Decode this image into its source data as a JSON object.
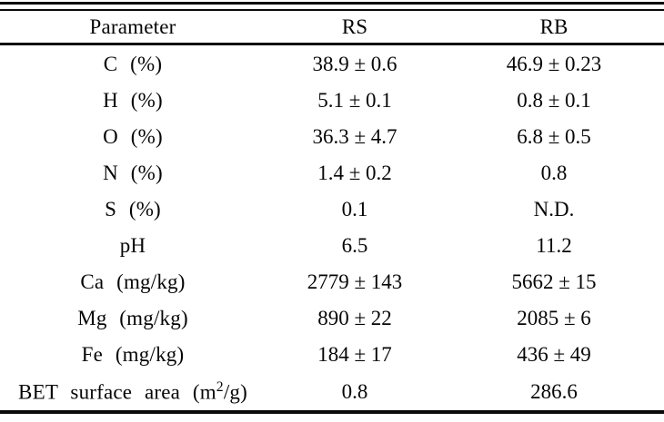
{
  "chart_data": {
    "type": "table",
    "columns": [
      "Parameter",
      "RS",
      "RB"
    ],
    "rows": [
      [
        "C (%)",
        "38.9 ± 0.6",
        "46.9 ± 0.23"
      ],
      [
        "H (%)",
        "5.1 ± 0.1",
        "0.8 ± 0.1"
      ],
      [
        "O (%)",
        "36.3 ± 4.7",
        "6.8 ± 0.5"
      ],
      [
        "N (%)",
        "1.4 ± 0.2",
        "0.8"
      ],
      [
        "S (%)",
        "0.1",
        "N.D."
      ],
      [
        "pH",
        "6.5",
        "11.2"
      ],
      [
        "Ca (mg/kg)",
        "2779 ± 143",
        "5662 ± 15"
      ],
      [
        "Mg (mg/kg)",
        "890 ± 22",
        "2085 ± 6"
      ],
      [
        "Fe (mg/kg)",
        "184 ± 17",
        "436 ± 49"
      ],
      [
        "BET surface area (m²/g)",
        "0.8",
        "286.6"
      ]
    ]
  },
  "colors": {
    "text": "#060606",
    "rule": "#0a0a0a",
    "background": "#ffffff"
  }
}
